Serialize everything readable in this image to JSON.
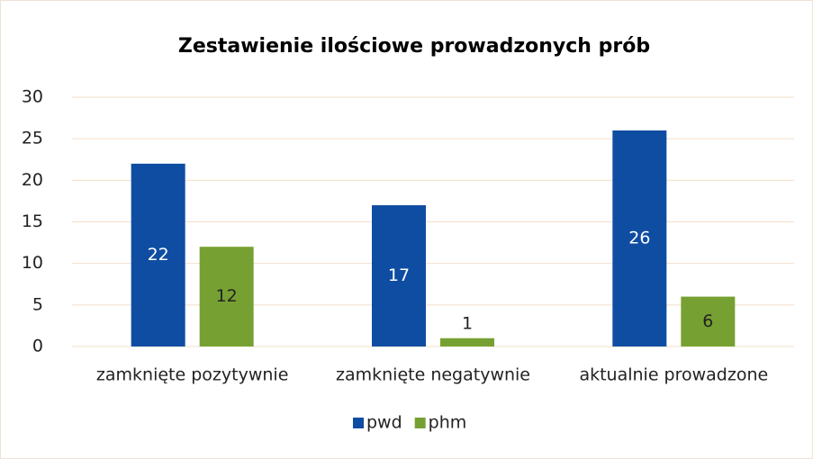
{
  "chart_data": {
    "type": "bar",
    "title": "Zestawienie ilościowe prowadzonych prób",
    "categories": [
      "zamknięte pozytywnie",
      "zamknięte negatywnie",
      "aktualnie prowadzone"
    ],
    "series": [
      {
        "name": "pwd",
        "color": "#0f4da2",
        "values": [
          22,
          17,
          26
        ]
      },
      {
        "name": "phm",
        "color": "#76a132",
        "values": [
          12,
          1,
          6
        ]
      }
    ],
    "ylim": [
      0,
      30
    ],
    "yticks": [
      0,
      5,
      10,
      15,
      20,
      25,
      30
    ],
    "grid": true,
    "legend": "bottom"
  }
}
